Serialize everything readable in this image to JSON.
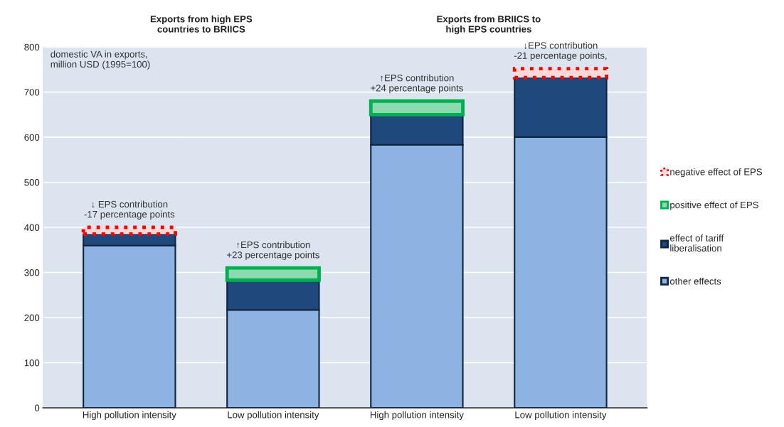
{
  "chart_data": {
    "type": "bar",
    "stacked": true,
    "categories": [
      "High pollution intensity",
      "Low pollution intensity",
      "High pollution intensity",
      "Low pollution intensity"
    ],
    "series": [
      {
        "name": "other effects",
        "color": "#8db3e2",
        "values": [
          360,
          217,
          583,
          600
        ]
      },
      {
        "name": "effect of tariff liberalisation",
        "color": "#1f497d",
        "values": [
          25,
          66,
          67,
          132
        ]
      },
      {
        "name": "positive effect of EPS",
        "color": "#00b050",
        "line_style": "solid",
        "values": [
          0,
          27,
          30,
          0
        ]
      },
      {
        "name": "negative effect of EPS",
        "color": "#ff0000",
        "line_style": "dotted",
        "values": [
          15,
          0,
          0,
          20
        ]
      }
    ],
    "ylabel": "domestic VA in exports,\nmillion USD (1995=100)",
    "ylim": [
      0,
      800
    ],
    "yticks": [
      0,
      100,
      200,
      300,
      400,
      500,
      600,
      700,
      800
    ],
    "grid": "y",
    "legend": "right",
    "annotations": [
      "Exports from high EPS\ncountries to BRIICS",
      "Exports from BRIICS to\nhigh EPS countries",
      "↓ EPS contribution\n-17 percentage points",
      "↑EPS contribution\n+23 percentage points",
      "↑EPS contribution\n+24 percentage points",
      "↓EPS contribution\n-21 percentage points,"
    ]
  }
}
